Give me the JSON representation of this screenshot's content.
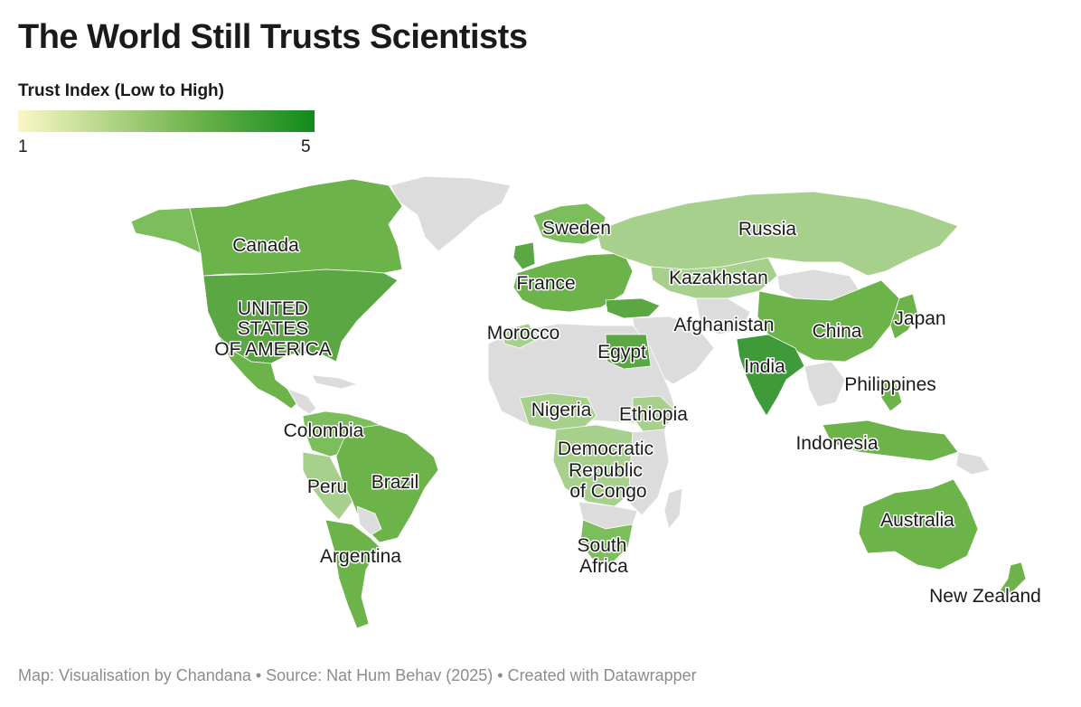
{
  "title": "The World Still Trusts Scientists",
  "legend": {
    "title": "Trust Index (Low to High)",
    "min": "1",
    "max": "5",
    "gradient_colors": [
      "#fbf7c6",
      "#6cb34a",
      "#118a1e"
    ]
  },
  "footer": "Map: Visualisation by Chandana • Source: Nat Hum Behav (2025) • Created with Datawrapper",
  "colors": {
    "no_data": "#dcdcdc",
    "light": "#a8d08d",
    "medium": "#7cbd5c",
    "dark": "#5aa744",
    "darkest": "#3f9a3a"
  },
  "labels": {
    "canada": "Canada",
    "usa_1": "UNITED",
    "usa_2": "STATES",
    "usa_3": "OF AMERICA",
    "colombia": "Colombia",
    "peru": "Peru",
    "brazil": "Brazil",
    "argentina": "Argentina",
    "sweden": "Sweden",
    "france": "France",
    "morocco": "Morocco",
    "egypt": "Egypt",
    "nigeria": "Nigeria",
    "ethiopia": "Ethiopia",
    "drc_1": "Democratic",
    "drc_2": "Republic",
    "drc_3": "of Congo",
    "south_africa_1": "South",
    "south_africa_2": "Africa",
    "russia": "Russia",
    "kazakhstan": "Kazakhstan",
    "afghanistan": "Afghanistan",
    "china": "China",
    "india": "India",
    "japan": "Japan",
    "philippines": "Philippines",
    "indonesia": "Indonesia",
    "australia": "Australia",
    "new_zealand": "New Zealand"
  }
}
